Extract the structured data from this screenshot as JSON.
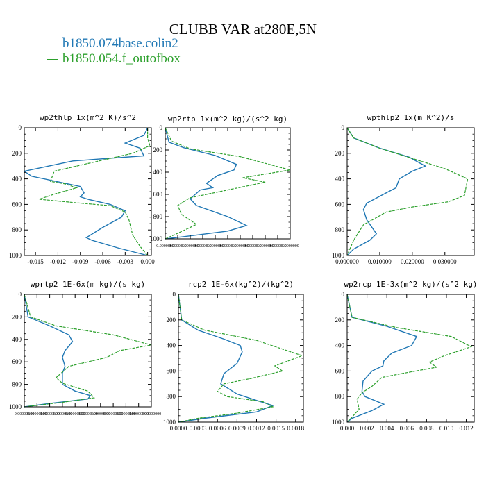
{
  "title": "CLUBB VAR at280E,5N",
  "legend": [
    {
      "label": "b1850.074base.colin2",
      "color": "#1f77b4"
    },
    {
      "label": "b1850.054.f_outofbox",
      "color": "#2ca02c"
    }
  ],
  "chart_data": [
    {
      "type": "line",
      "title": "wp2thlp   1x(m^2 K)/s^2",
      "xlim": [
        -0.0165,
        0.0005
      ],
      "ylim": [
        1000,
        0
      ],
      "xticks": [
        -0.015,
        -0.012,
        -0.009,
        -0.006,
        -0.003,
        0.0
      ],
      "xticklabels": [
        "-0.015",
        "-0.012",
        "-0.009",
        "-0.006",
        "-0.003",
        "0.000"
      ],
      "yticks": [
        0,
        200,
        400,
        600,
        800,
        1000
      ],
      "series": [
        {
          "name": "b1850.074base.colin2",
          "x": [
            0.0,
            -0.0005,
            -0.003,
            -0.001,
            -0.0005,
            -0.01,
            -0.0165,
            -0.0155,
            -0.009,
            -0.0085,
            -0.009,
            -0.008,
            -0.005,
            -0.003,
            -0.0035,
            -0.006,
            -0.0082,
            -0.0075,
            -0.004,
            0.0
          ],
          "y": [
            0,
            60,
            120,
            160,
            220,
            260,
            340,
            380,
            460,
            510,
            540,
            560,
            600,
            650,
            700,
            780,
            860,
            880,
            940,
            1000
          ]
        },
        {
          "name": "b1850.054.f_outofbox",
          "x": [
            0.0,
            0.0,
            0.0003,
            -0.002,
            -0.008,
            -0.0125,
            -0.013,
            -0.011,
            -0.0095,
            -0.0125,
            -0.0145,
            -0.009,
            -0.005,
            -0.003,
            -0.0025,
            -0.002,
            -0.001,
            0.0
          ],
          "y": [
            0,
            80,
            140,
            200,
            280,
            340,
            420,
            440,
            470,
            520,
            560,
            590,
            610,
            660,
            720,
            840,
            930,
            1000
          ]
        }
      ]
    },
    {
      "type": "line",
      "title": "wp2rtp   1x(m^2 kg)/(s^2 kg)",
      "xlim": [
        0.0,
        1e-07
      ],
      "ylim": [
        1000,
        0
      ],
      "xticks": [
        0.0,
        1e-08,
        2e-08,
        3e-08,
        4e-08,
        5e-08,
        6e-08,
        7e-08,
        8e-08,
        9e-08,
        1e-07
      ],
      "xticklabels": [
        "0.0000000",
        "0.0000000",
        "0.0000000",
        "0.0000000",
        "0.0000000",
        "0.0000000",
        "0.0000000",
        "0.0000000",
        "0.0000000",
        "0.0000000",
        "0.0000000"
      ],
      "yticks": [
        0,
        200,
        400,
        600,
        800,
        1000
      ],
      "series": [
        {
          "name": "b1850.074base.colin2",
          "x": [
            0.0,
            3e-09,
            1.5e-08,
            4e-08,
            5.7e-08,
            5.5e-08,
            4.2e-08,
            3.3e-08,
            3.8e-08,
            2.8e-08,
            2e-08,
            2.5e-08,
            5e-08,
            6.5e-08,
            5e-08,
            1.5e-08,
            0.0
          ],
          "y": [
            0,
            130,
            180,
            250,
            330,
            380,
            430,
            500,
            540,
            560,
            640,
            700,
            800,
            880,
            930,
            980,
            1000
          ]
        },
        {
          "name": "b1850.054.f_outofbox",
          "x": [
            0.0,
            5e-09,
            2e-08,
            6e-08,
            1e-07,
            6.2e-08,
            8e-08,
            5e-08,
            2e-08,
            1e-08,
            1.3e-08,
            2.5e-08,
            1e-08,
            0.0
          ],
          "y": [
            0,
            120,
            190,
            260,
            380,
            450,
            490,
            560,
            630,
            700,
            780,
            870,
            950,
            1000
          ]
        }
      ]
    },
    {
      "type": "line",
      "title": "wpthlp2   1x(m K^2)/s",
      "xlim": [
        0.0,
        0.039
      ],
      "ylim": [
        1000,
        0
      ],
      "xticks": [
        0.0,
        0.01,
        0.02,
        0.03
      ],
      "xticklabels": [
        "0.000000",
        "0.010000",
        "0.020000",
        "0.030000"
      ],
      "yticks": [
        0,
        200,
        400,
        600,
        800,
        1000
      ],
      "series": [
        {
          "name": "b1850.074base.colin2",
          "x": [
            0.0,
            0.002,
            0.01,
            0.019,
            0.024,
            0.02,
            0.016,
            0.015,
            0.012,
            0.006,
            0.005,
            0.006,
            0.009,
            0.007,
            0.002,
            0.0
          ],
          "y": [
            0,
            80,
            160,
            230,
            300,
            340,
            400,
            470,
            510,
            590,
            640,
            720,
            830,
            880,
            950,
            1000
          ]
        },
        {
          "name": "b1850.054.f_outofbox",
          "x": [
            0.0,
            0.002,
            0.01,
            0.02,
            0.03,
            0.037,
            0.036,
            0.031,
            0.02,
            0.012,
            0.005,
            0.002,
            0.0
          ],
          "y": [
            0,
            80,
            160,
            240,
            320,
            400,
            530,
            580,
            620,
            660,
            760,
            880,
            1000
          ]
        }
      ]
    },
    {
      "type": "line",
      "title": "wprtp2   1E-6x(m kg)/(s kg)",
      "xlim": [
        0.0,
        1e-07
      ],
      "ylim": [
        1000,
        0
      ],
      "xticks": [
        0.0,
        1e-08,
        2e-08,
        3e-08,
        4e-08,
        5e-08,
        6e-08,
        7e-08,
        8e-08,
        9e-08,
        1e-07
      ],
      "xticklabels": [
        "0.00000000",
        "0.00000000",
        "0.00000000",
        "0.00000000",
        "0.00000000",
        "0.00000000",
        "0.00000000",
        "0.00000000",
        "0.00000000",
        "0.00000000",
        "0.00000000"
      ],
      "yticks": [
        0,
        200,
        400,
        600,
        800,
        1000
      ],
      "series": [
        {
          "name": "b1850.074base.colin2",
          "x": [
            0.0,
            3e-09,
            2e-08,
            3.5e-08,
            3.8e-08,
            3.2e-08,
            3e-08,
            3.2e-08,
            3e-08,
            3e-08,
            4e-08,
            5.2e-08,
            5e-08,
            2e-08,
            0.0
          ],
          "y": [
            0,
            200,
            280,
            360,
            420,
            500,
            560,
            640,
            700,
            800,
            860,
            900,
            930,
            970,
            1000
          ]
        },
        {
          "name": "b1850.054.f_outofbox",
          "x": [
            0.0,
            5e-09,
            2.5e-08,
            7e-08,
            1e-07,
            7.5e-08,
            6.5e-08,
            3.5e-08,
            2.5e-08,
            3e-08,
            5e-08,
            5.5e-08,
            3e-08,
            0.0
          ],
          "y": [
            0,
            200,
            280,
            360,
            450,
            500,
            560,
            640,
            740,
            790,
            860,
            920,
            960,
            1000
          ]
        }
      ]
    },
    {
      "type": "line",
      "title": "rcp2   1E-6x(kg^2)/(kg^2)",
      "xlim": [
        0.0,
        0.00192
      ],
      "ylim": [
        1000,
        0
      ],
      "xticks": [
        0.0,
        0.0003,
        0.0006,
        0.0009,
        0.0012,
        0.0015,
        0.0018
      ],
      "xticklabels": [
        "0.0000",
        "0.0003",
        "0.0006",
        "0.0009",
        "0.0012",
        "0.0015",
        "0.0018"
      ],
      "yticks": [
        0,
        200,
        400,
        600,
        800,
        1000
      ],
      "series": [
        {
          "name": "b1850.074base.colin2",
          "x": [
            0.0,
            5e-05,
            0.0003,
            0.0007,
            0.00095,
            0.00098,
            0.0009,
            0.0007,
            0.00065,
            0.0009,
            0.0012,
            0.00145,
            0.0012,
            0.0004,
            0.0
          ],
          "y": [
            0,
            200,
            280,
            350,
            400,
            450,
            540,
            620,
            700,
            780,
            830,
            870,
            920,
            970,
            1000
          ]
        },
        {
          "name": "b1850.054.f_outofbox",
          "x": [
            0.0,
            5e-05,
            0.0004,
            0.0012,
            0.0019,
            0.00148,
            0.0016,
            0.0011,
            0.0007,
            0.0006,
            0.00075,
            0.0013,
            0.00145,
            0.0009,
            0.0003,
            0.0
          ],
          "y": [
            0,
            200,
            280,
            360,
            480,
            560,
            600,
            660,
            700,
            760,
            800,
            840,
            880,
            930,
            970,
            1000
          ]
        }
      ]
    },
    {
      "type": "line",
      "title": "wp2rcp   1E-3x(m^2 kg)/(s^2 kg)",
      "xlim": [
        0.0,
        0.0128
      ],
      "ylim": [
        1000,
        0
      ],
      "xticks": [
        0.0,
        0.002,
        0.004,
        0.006,
        0.008,
        0.01,
        0.012
      ],
      "xticklabels": [
        "0.000",
        "0.002",
        "0.004",
        "0.006",
        "0.008",
        "0.010",
        "0.012"
      ],
      "yticks": [
        0,
        200,
        400,
        600,
        800,
        1000
      ],
      "series": [
        {
          "name": "b1850.074base.colin2",
          "x": [
            0.0,
            0.0005,
            0.004,
            0.007,
            0.0065,
            0.0045,
            0.0037,
            0.0036,
            0.0025,
            0.0016,
            0.0015,
            0.0018,
            0.0037,
            0.0025,
            0.0005,
            0.0
          ],
          "y": [
            0,
            180,
            250,
            330,
            400,
            460,
            520,
            560,
            600,
            680,
            760,
            800,
            860,
            910,
            970,
            1000
          ]
        },
        {
          "name": "b1850.054.f_outofbox",
          "x": [
            0.0,
            0.0005,
            0.005,
            0.0105,
            0.0125,
            0.0098,
            0.0083,
            0.009,
            0.0055,
            0.0035,
            0.0025,
            0.0015,
            0.001,
            0.0012,
            0.0005,
            0.0
          ],
          "y": [
            0,
            180,
            260,
            330,
            410,
            480,
            530,
            570,
            620,
            650,
            720,
            770,
            820,
            900,
            960,
            1000
          ]
        }
      ]
    }
  ]
}
